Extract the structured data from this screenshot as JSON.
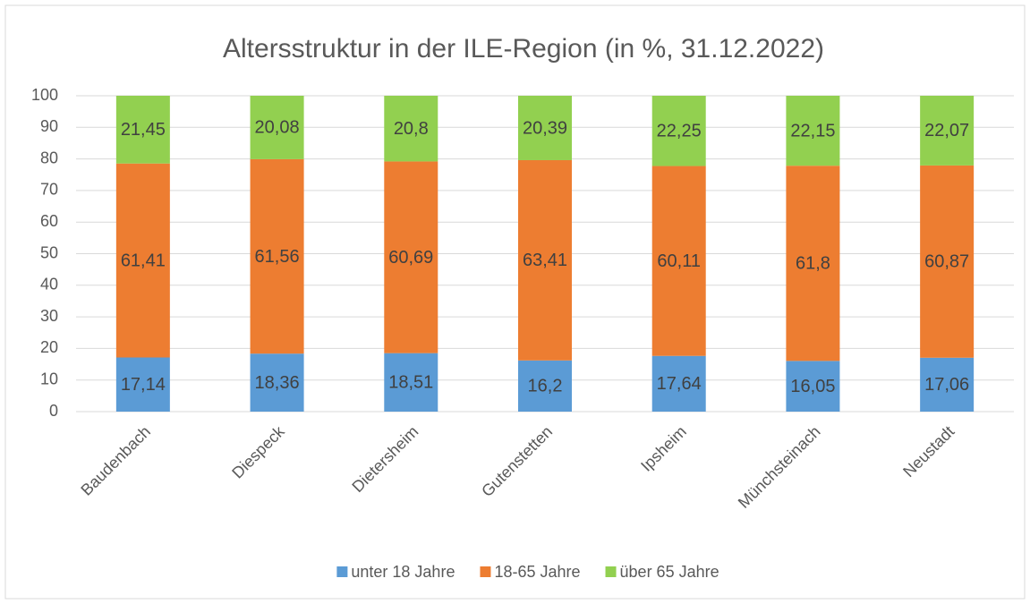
{
  "chart_data": {
    "type": "stacked_bar",
    "title": "Altersstruktur in der ILE-Region (in %, 31.12.2022)",
    "categories": [
      "Baudenbach",
      "Diespeck",
      "Dietersheim",
      "Gutenstetten",
      "Ipsheim",
      "Münchsteinach",
      "Neustadt"
    ],
    "series": [
      {
        "name": "unter 18 Jahre",
        "color": "#5b9bd5",
        "values": [
          17.14,
          18.36,
          18.51,
          16.2,
          17.64,
          16.05,
          17.06
        ],
        "value_labels": [
          "17,14",
          "18,36",
          "18,51",
          "16,2",
          "17,64",
          "16,05",
          "17,06"
        ]
      },
      {
        "name": "18-65 Jahre",
        "color": "#ed7d31",
        "values": [
          61.41,
          61.56,
          60.69,
          63.41,
          60.11,
          61.8,
          60.87
        ],
        "value_labels": [
          "61,41",
          "61,56",
          "60,69",
          "63,41",
          "60,11",
          "61,8",
          "60,87"
        ]
      },
      {
        "name": "über 65 Jahre",
        "color": "#92d050",
        "values": [
          21.45,
          20.08,
          20.8,
          20.39,
          22.25,
          22.15,
          22.07
        ],
        "value_labels": [
          "21,45",
          "20,08",
          "20,8",
          "20,39",
          "22,25",
          "22,15",
          "22,07"
        ]
      }
    ],
    "ylim": [
      0,
      100
    ],
    "yticks": [
      0,
      10,
      20,
      30,
      40,
      50,
      60,
      70,
      80,
      90,
      100
    ],
    "grid": true,
    "legend": "bottom"
  }
}
